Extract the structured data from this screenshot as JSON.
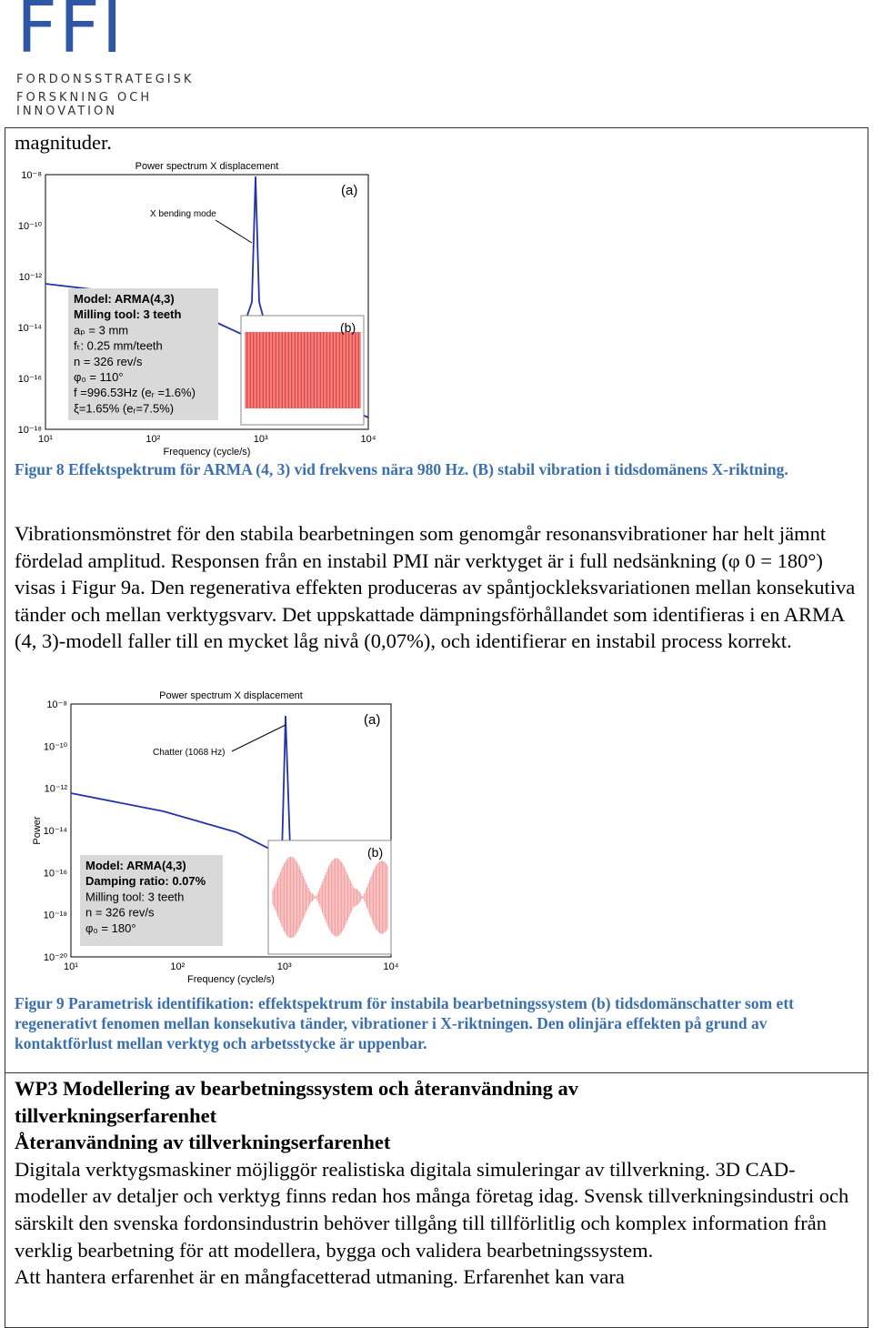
{
  "header": {
    "logo": "FFI",
    "line1": "FORDONSSTRATEGISK",
    "line2": "FORSKNING OCH INNOVATION"
  },
  "intro": "magnituder.",
  "figure1": {
    "title": "Power spectrum X displacement",
    "annotation": "X bending mode",
    "label_a": "(a)",
    "label_b": "(b)",
    "xlabel": "Frequency (cycle/s)",
    "yticks": [
      "10⁻⁸",
      "10⁻¹⁰",
      "10⁻¹²",
      "10⁻¹⁴",
      "10⁻¹⁶",
      "10⁻¹⁸"
    ],
    "xticks": [
      "10¹",
      "10²",
      "10³",
      "10⁴"
    ],
    "box": [
      "Model: ARMA(4,3)",
      "Milling tool: 3 teeth",
      "aₚ = 3 mm",
      "fₜ: 0.25 mm/teeth",
      "n = 326 rev/s",
      "φ₀ = 110°",
      "f =996.53Hz (eᵣ =1.6%)",
      "ξ=1.65% (eᵣ=7.5%)"
    ]
  },
  "caption1": "Figur 8 Effektspektrum för ARMA (4, 3) vid frekvens nära 980 Hz. (B) stabil vibration i tidsdomänens X-riktning.",
  "paragraph": "Vibrationsmönstret för den stabila bearbetningen som genomgår resonansvibrationer har helt jämnt fördelad amplitud. Responsen från en instabil PMI när verktyget är i full nedsänkning (φ 0 = 180°) visas i Figur 9a. Den regenerativa effekten produceras av spåntjockleksvariationen mellan konsekutiva tänder och mellan verktygsvarv. Det uppskattade dämpningsförhållandet som identifieras i en ARMA (4, 3)-modell faller till en mycket låg nivå (0,07%), och identifierar en instabil process korrekt.",
  "figure2": {
    "title": "Power spectrum X displacement",
    "annotation": "Chatter (1068 Hz)",
    "label_a": "(a)",
    "label_b": "(b)",
    "xlabel": "Frequency (cycle/s)",
    "ylabel": "Power",
    "yticks": [
      "10⁻⁸",
      "10⁻¹⁰",
      "10⁻¹²",
      "10⁻¹⁴",
      "10⁻¹⁶",
      "10⁻¹⁸",
      "10⁻²⁰"
    ],
    "xticks": [
      "10¹",
      "10²",
      "10³",
      "10⁴"
    ],
    "box": [
      "Model: ARMA(4,3)",
      "Damping ratio: 0.07%",
      "Milling tool: 3 teeth",
      "n = 326 rev/s",
      "φ₀ = 180°"
    ]
  },
  "caption2": "Figur 9 Parametrisk identifikation: effektspektrum för instabila bearbetningssystem (b) tidsdomänschatter som ett regenerativt fenomen mellan konsekutiva tänder, vibrationer i X-riktningen. Den olinjära effekten på grund av kontaktförlust mellan verktyg och arbetsstycke är uppenbar.",
  "section": {
    "heading1": "WP3 Modellering av bearbetningssystem och återanvändning av tillverkningserfarenhet",
    "heading2": "Återanvändning av tillverkningserfarenhet",
    "text": "Digitala verktygsmaskiner möjliggör realistiska digitala simuleringar av tillverkning. 3D CAD-modeller av detaljer och verktyg finns redan hos många företag idag. Svensk tillverkningsindustri och särskilt den svenska fordonsindustrin behöver tillgång till tillförlitlig och komplex information från verklig bearbetning för att modellera, bygga och validera bearbetningssystem.",
    "last": "Att hantera erfarenhet är en mångfacetterad utmaning. Erfarenhet kan vara"
  }
}
